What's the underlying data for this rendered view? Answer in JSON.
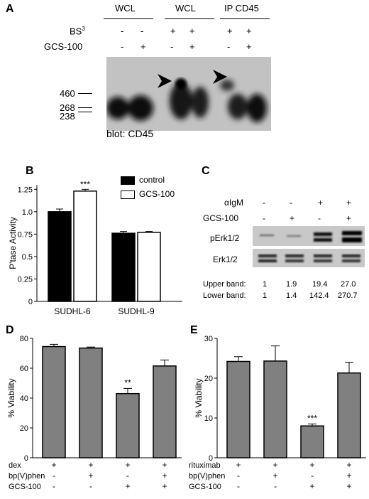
{
  "panel_a": {
    "letter": "A",
    "groups": [
      "WCL",
      "WCL",
      "IP CD45"
    ],
    "row_labels": {
      "bs3_base": "BS",
      "bs3_sup": "3",
      "gcs": "GCS-100"
    },
    "bs3_signs": [
      "-",
      "-",
      "+",
      "+",
      "+",
      "+"
    ],
    "gcs_signs": [
      "-",
      "+",
      "-",
      "+",
      "-",
      "+"
    ],
    "markers": [
      "460",
      "268",
      "238"
    ],
    "caption": "blot: CD45"
  },
  "panel_b": {
    "letter": "B",
    "legend": [
      "control",
      "GCS-100"
    ],
    "ylabel": "P'tase Activity",
    "significance": "***",
    "chart_data": {
      "type": "bar",
      "categories": [
        "SUDHL-6",
        "SUDHL-9"
      ],
      "series": [
        {
          "name": "control",
          "values": [
            1.0,
            0.76
          ],
          "errors": [
            0.03,
            0.02
          ],
          "color": "#000000"
        },
        {
          "name": "GCS-100",
          "values": [
            1.23,
            0.77
          ],
          "errors": [
            0.02,
            0.01
          ],
          "color": "#ffffff"
        }
      ],
      "yticks": [
        "0",
        "0.25",
        "0.5",
        "0.75",
        "1.0",
        "1.25"
      ],
      "ylim": [
        0,
        1.3
      ]
    }
  },
  "panel_c": {
    "letter": "C",
    "row_labels": {
      "aigm_alpha": "α",
      "aigm": "IgM",
      "gcs": "GCS-100"
    },
    "aigm_signs": [
      "-",
      "-",
      "+",
      "+"
    ],
    "gcs_signs": [
      "-",
      "+",
      "-",
      "+"
    ],
    "blot_labels": [
      "pErk1/2",
      "Erk1/2"
    ],
    "quant": [
      {
        "label": "Upper band:",
        "values": [
          "1",
          "1.9",
          "19.4",
          "27.0"
        ]
      },
      {
        "label": "Lower band:",
        "values": [
          "1",
          "1.4",
          "142.4",
          "270.7"
        ]
      }
    ]
  },
  "panel_d": {
    "letter": "D",
    "ylabel": "% Viability",
    "significance": "**",
    "row_labels": [
      "dex",
      "bp(V)phen",
      "GCS-100"
    ],
    "signs": [
      [
        "+",
        "+",
        "+",
        "+"
      ],
      [
        "-",
        "+",
        "-",
        "+"
      ],
      [
        "-",
        "-",
        "+",
        "+"
      ]
    ],
    "chart_data": {
      "type": "bar",
      "values": [
        74.5,
        73.5,
        43,
        61.5
      ],
      "errors": [
        1.5,
        0.7,
        3.5,
        4
      ],
      "yticks": [
        "0",
        "20",
        "40",
        "60",
        "80"
      ],
      "ylim": [
        0,
        80
      ],
      "color": "#808080"
    }
  },
  "panel_e": {
    "letter": "E",
    "ylabel": "% Viability",
    "significance": "***",
    "row_labels": [
      "rituximab",
      "bp(V)phen",
      "GCS-100"
    ],
    "signs": [
      [
        "+",
        "+",
        "+",
        "+"
      ],
      [
        "-",
        "+",
        "-",
        "+"
      ],
      [
        "-",
        "-",
        "+",
        "+"
      ]
    ],
    "chart_data": {
      "type": "bar",
      "values": [
        24.2,
        24.3,
        8,
        21.3
      ],
      "errors": [
        1.2,
        3.8,
        0.5,
        2.7
      ],
      "yticks": [
        "0",
        "10",
        "20",
        "30"
      ],
      "ylim": [
        0,
        30
      ],
      "color": "#808080"
    }
  }
}
